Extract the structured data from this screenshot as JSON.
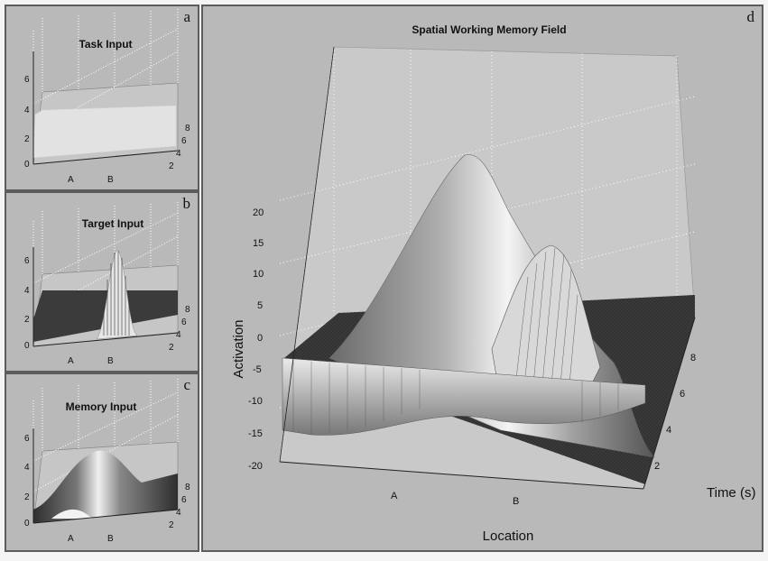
{
  "panels": [
    {
      "letter": "a",
      "title": "Task Input",
      "z_ticks": [
        "0",
        "2",
        "4",
        "6"
      ],
      "x_ticks": [
        "A",
        "B"
      ],
      "y_ticks": [
        "2",
        "4",
        "6",
        "8"
      ]
    },
    {
      "letter": "b",
      "title": "Target Input",
      "z_ticks": [
        "0",
        "2",
        "4",
        "6"
      ],
      "x_ticks": [
        "A",
        "B"
      ],
      "y_ticks": [
        "2",
        "4",
        "6",
        "8"
      ]
    },
    {
      "letter": "c",
      "title": "Memory Input",
      "z_ticks": [
        "0",
        "2",
        "4",
        "6"
      ],
      "x_ticks": [
        "A",
        "B"
      ],
      "y_ticks": [
        "2",
        "4",
        "6",
        "8"
      ]
    }
  ],
  "main": {
    "letter": "d",
    "title": "Spatial Working Memory Field",
    "z_label": "Activation",
    "x_label": "Location",
    "y_label": "Time (s)",
    "z_ticks": [
      "20",
      "15",
      "10",
      "5",
      "0",
      "-5",
      "-10",
      "-15",
      "-20"
    ],
    "x_ticks": [
      "A",
      "B"
    ],
    "y_ticks": [
      "2",
      "4",
      "6",
      "8"
    ]
  }
}
